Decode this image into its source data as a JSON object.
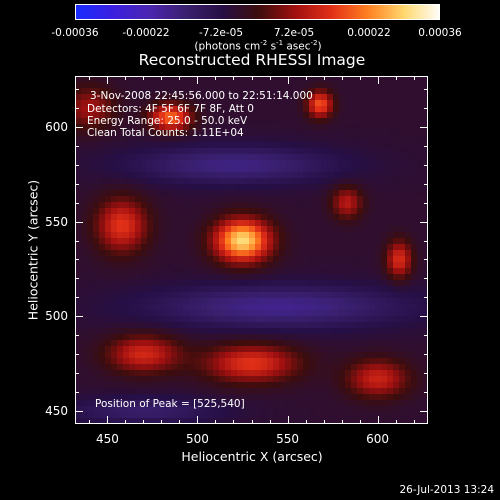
{
  "colorbar": {
    "ticks": [
      "-0.00036",
      "-0.00022",
      "-7.2e-05",
      "7.2e-05",
      "0.00022",
      "0.00036"
    ],
    "units_prefix": "(photons cm",
    "units_sup1": "-2",
    "units_mid": " s",
    "units_sup2": "-1",
    "units_mid2": " asec",
    "units_sup3": "-2",
    "units_suffix": ")",
    "stops": [
      "#1a2cff",
      "#3a1fe0",
      "#4a26b0",
      "#3a2070",
      "#260f45",
      "#3d0d0d",
      "#a01010",
      "#e23018",
      "#ff8020",
      "#ffd870",
      "#ffffff"
    ],
    "range": [
      -0.00036,
      0.00036
    ]
  },
  "chart_data": {
    "type": "heatmap",
    "title": "Reconstructed RHESSI Image",
    "xlabel": "Heliocentric X (arcsec)",
    "ylabel": "Heliocentric Y (arcsec)",
    "xlim": [
      432,
      628
    ],
    "ylim": [
      443,
      627
    ],
    "xticks": [
      "450",
      "500",
      "550",
      "600"
    ],
    "yticks": [
      "600",
      "550",
      "500",
      "450"
    ],
    "peak": [
      525,
      540
    ],
    "sources": [
      {
        "x": 525,
        "y": 540,
        "sx": 11,
        "sy": 8,
        "amp": 0.00034
      },
      {
        "x": 485,
        "y": 605,
        "sx": 8,
        "sy": 5,
        "amp": 0.00024
      },
      {
        "x": 568,
        "y": 612,
        "sx": 5,
        "sy": 5,
        "amp": 0.00022
      },
      {
        "x": 458,
        "y": 548,
        "sx": 10,
        "sy": 10,
        "amp": 0.00019
      },
      {
        "x": 612,
        "y": 530,
        "sx": 5,
        "sy": 7,
        "amp": 0.00018
      },
      {
        "x": 583,
        "y": 560,
        "sx": 6,
        "sy": 6,
        "amp": 0.00014
      },
      {
        "x": 470,
        "y": 480,
        "sx": 14,
        "sy": 7,
        "amp": 0.00017
      },
      {
        "x": 530,
        "y": 475,
        "sx": 18,
        "sy": 7,
        "amp": 0.00019
      },
      {
        "x": 600,
        "y": 467,
        "sx": 12,
        "sy": 7,
        "amp": 0.00016
      },
      {
        "x": 440,
        "y": 610,
        "sx": 10,
        "sy": 8,
        "amp": 0.00012
      }
    ],
    "negatives": [
      {
        "x": 520,
        "y": 580,
        "sx": 40,
        "sy": 7,
        "amp": -0.00012
      },
      {
        "x": 545,
        "y": 505,
        "sx": 50,
        "sy": 8,
        "amp": -0.00013
      },
      {
        "x": 470,
        "y": 450,
        "sx": 30,
        "sy": 5,
        "amp": -9e-05
      }
    ]
  },
  "annotations": {
    "time_range": "3-Nov-2008 22:45:56.000 to 22:51:14.000",
    "detectors": "Detectors: 4F 5F 6F 7F 8F, Att 0",
    "energy": "Energy Range: 25.0 - 50.0 keV",
    "clean": "Clean    Total Counts: 1.11E+04",
    "peak_position": "Position of Peak = [525,540]"
  },
  "timestamp": "26-Jul-2013 13:24"
}
